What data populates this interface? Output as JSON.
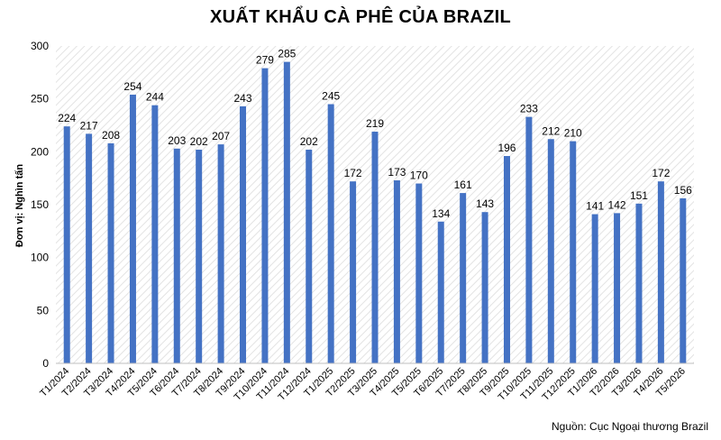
{
  "chart_data": {
    "type": "bar",
    "title": "XUẤT KHẨU CÀ PHÊ CỦA BRAZIL",
    "ylabel": "Đơn vị: Nghìn tấn",
    "xlabel": "",
    "ylim": [
      0,
      300
    ],
    "yticks": [
      "0",
      "50",
      "100",
      "150",
      "200",
      "250",
      "300"
    ],
    "grid": "hatched plot area",
    "bar_color": "#4472C4",
    "categories": [
      "T1/2024",
      "T2/2024",
      "T3/2024",
      "T4/2024",
      "T5/2024",
      "T6/2024",
      "T7/2024",
      "T8/2024",
      "T9/2024",
      "T10/2024",
      "T11/2024",
      "T12/2024",
      "T1/2025",
      "T2/2025",
      "T3/2025",
      "T4/2025",
      "T5/2025",
      "T6/2025",
      "T7/2025",
      "T8/2025",
      "T9/2025",
      "T10/2025",
      "T11/2025",
      "T12/2025",
      "T1/2026",
      "T2/2026",
      "T3/2026",
      "T4/2026",
      "T5/2026"
    ],
    "values": [
      224,
      217,
      208,
      254,
      244,
      203,
      202,
      207,
      243,
      279,
      285,
      202,
      245,
      172,
      219,
      173,
      170,
      134,
      161,
      143,
      196,
      233,
      212,
      210,
      141,
      142,
      151,
      172,
      156
    ]
  },
  "source": "Nguồn: Cục Ngoại thương Brazil"
}
